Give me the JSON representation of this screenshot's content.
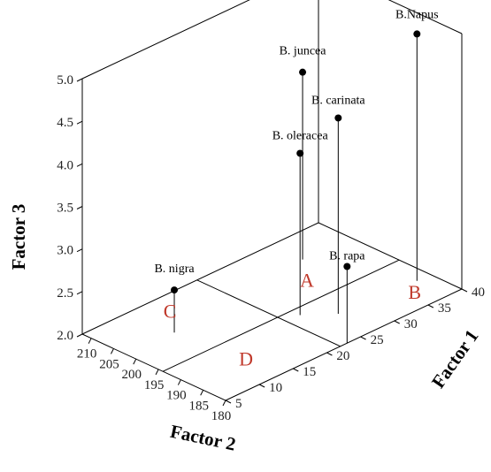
{
  "chart_data": {
    "type": "scatter3d",
    "title": "",
    "xlabel": "Factor 2",
    "ylabel": "Factor 1",
    "zlabel": "Factor 3",
    "xlim": [
      180,
      212
    ],
    "ylim": [
      5,
      40
    ],
    "zlim": [
      2.0,
      5.0
    ],
    "x_ticks": [
      "180",
      "185",
      "190",
      "195",
      "200",
      "205",
      "210"
    ],
    "y_ticks": [
      "5",
      "10",
      "15",
      "20",
      "25",
      "30",
      "35",
      "40"
    ],
    "z_ticks": [
      "2.0",
      "2.5",
      "3.0",
      "3.5",
      "4.0",
      "4.5",
      "5.0"
    ],
    "points": [
      {
        "name": "B.Napus",
        "x": 187,
        "y": 38,
        "z": 4.9
      },
      {
        "name": "B. carinata",
        "x": 188,
        "y": 27,
        "z": 4.3
      },
      {
        "name": "B. oleracea",
        "x": 192,
        "y": 24,
        "z": 3.9
      },
      {
        "name": "B. juncea",
        "x": 205,
        "y": 33,
        "z": 4.2
      },
      {
        "name": "B. rapa",
        "x": 180,
        "y": 23,
        "z": 2.9
      },
      {
        "name": "B. nigra",
        "x": 202,
        "y": 12,
        "z": 2.5
      }
    ],
    "quadrants": {
      "labels": [
        "A",
        "B",
        "C",
        "D"
      ],
      "x_divider": 194,
      "y_divider": 22,
      "color": "#c0392b"
    },
    "grid": false
  }
}
